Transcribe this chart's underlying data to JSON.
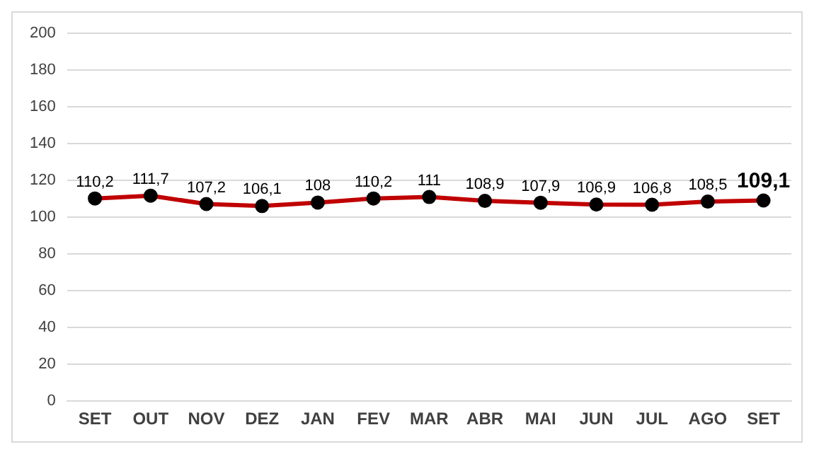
{
  "chart_data": {
    "type": "line",
    "categories": [
      "SET",
      "OUT",
      "NOV",
      "DEZ",
      "JAN",
      "FEV",
      "MAR",
      "ABR",
      "MAI",
      "JUN",
      "JUL",
      "AGO",
      "SET"
    ],
    "series": [
      {
        "color": "#c00000",
        "values": [
          110.2,
          111.7,
          107.2,
          106.1,
          108,
          110.2,
          111,
          108.9,
          107.9,
          106.9,
          106.8,
          108.5,
          109.1
        ],
        "value_labels": [
          "110,2",
          "111,7",
          "107,2",
          "106,1",
          "108",
          "110,2",
          "111",
          "108,9",
          "107,9",
          "106,9",
          "106,8",
          "108,5",
          "109,1"
        ]
      }
    ],
    "ylim": [
      0,
      200
    ],
    "yticks": [
      0,
      20,
      40,
      60,
      80,
      100,
      120,
      140,
      160,
      180,
      200
    ],
    "grid": "y",
    "marker": "circle",
    "line_style": "solid",
    "legend": false
  }
}
